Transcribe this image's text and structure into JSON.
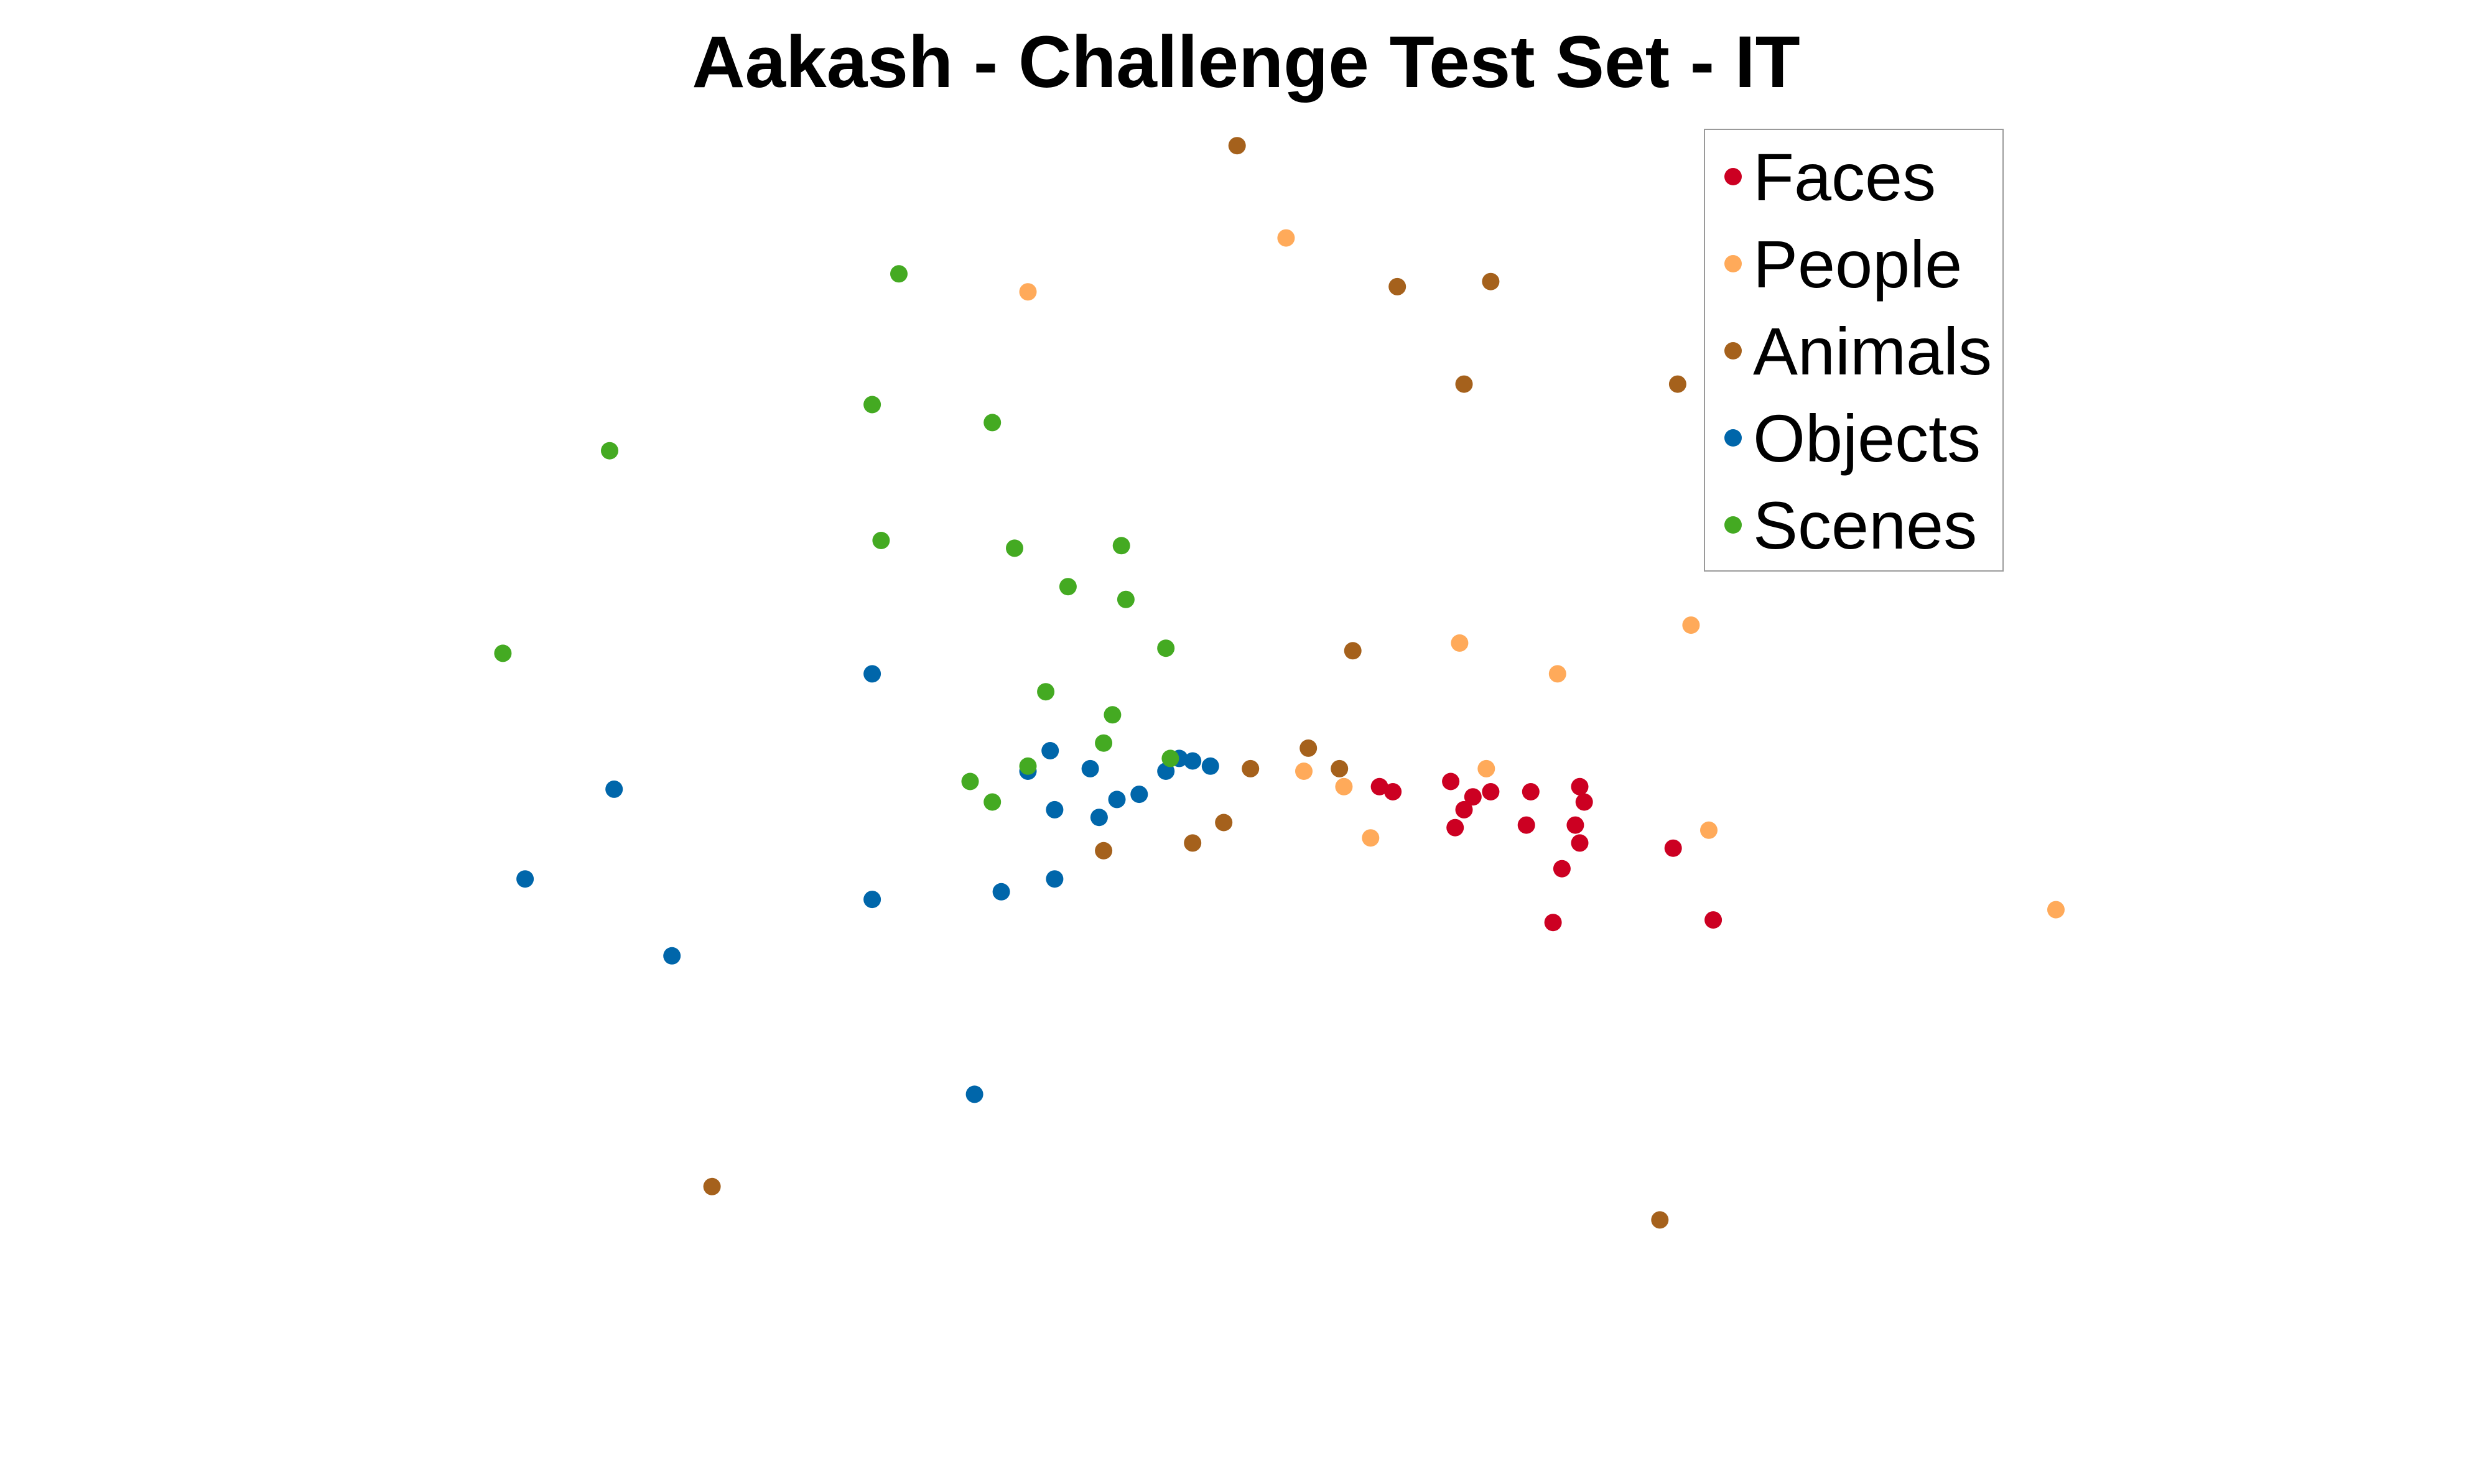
{
  "chart_data": {
    "type": "scatter",
    "title": "Aakash - Challenge Test Set - IT",
    "xlabel": "",
    "ylabel": "",
    "axes_visible": false,
    "grid": false,
    "xlim": [
      -14,
      14
    ],
    "ylim": [
      -14,
      13
    ],
    "legend": {
      "placement": "top-right",
      "box": true
    },
    "series": [
      {
        "name": "Faces",
        "color": "#cc0022",
        "points": [
          [
            1.5,
            -0.4
          ],
          [
            1.65,
            -0.5
          ],
          [
            2.3,
            -0.3
          ],
          [
            2.55,
            -0.6
          ],
          [
            2.75,
            -0.5
          ],
          [
            2.45,
            -0.85
          ],
          [
            2.35,
            -1.2
          ],
          [
            3.2,
            -0.5
          ],
          [
            3.15,
            -1.15
          ],
          [
            3.75,
            -0.4
          ],
          [
            3.8,
            -0.7
          ],
          [
            3.7,
            -1.15
          ],
          [
            3.75,
            -1.5
          ],
          [
            3.55,
            -2.0
          ],
          [
            3.45,
            -3.05
          ],
          [
            4.8,
            -1.6
          ],
          [
            5.25,
            -3.0
          ]
        ]
      },
      {
        "name": "People",
        "color": "#ffaa5a",
        "points": [
          [
            -2.45,
            9.25
          ],
          [
            0.45,
            10.3
          ],
          [
            2.4,
            2.4
          ],
          [
            3.5,
            1.8
          ],
          [
            5.0,
            2.75
          ],
          [
            2.7,
            -0.05
          ],
          [
            0.65,
            -0.1
          ],
          [
            1.1,
            -0.4
          ],
          [
            1.4,
            -1.4
          ],
          [
            5.2,
            -1.25
          ],
          [
            9.1,
            -2.8
          ]
        ]
      },
      {
        "name": "Animals",
        "color": "#a5611c",
        "points": [
          [
            -0.1,
            12.1
          ],
          [
            1.7,
            9.35
          ],
          [
            2.75,
            9.45
          ],
          [
            2.45,
            7.45
          ],
          [
            4.85,
            7.45
          ],
          [
            1.2,
            2.25
          ],
          [
            0.7,
            0.35
          ],
          [
            1.05,
            -0.05
          ],
          [
            0.05,
            -0.05
          ],
          [
            -0.25,
            -1.1
          ],
          [
            -0.6,
            -1.5
          ],
          [
            -1.6,
            -1.65
          ],
          [
            -6.0,
            -8.2
          ],
          [
            4.65,
            -8.85
          ]
        ]
      },
      {
        "name": "Objects",
        "color": "#0066aa",
        "points": [
          [
            -4.2,
            1.8
          ],
          [
            -7.1,
            -0.45
          ],
          [
            -8.1,
            -2.2
          ],
          [
            -6.45,
            -3.7
          ],
          [
            -4.2,
            -2.6
          ],
          [
            -2.75,
            -2.45
          ],
          [
            -2.15,
            -2.2
          ],
          [
            -3.05,
            -6.4
          ],
          [
            -2.45,
            -0.1
          ],
          [
            -2.2,
            0.3
          ],
          [
            -1.75,
            -0.05
          ],
          [
            -1.45,
            -0.65
          ],
          [
            -1.2,
            -0.55
          ],
          [
            -0.9,
            -0.1
          ],
          [
            -0.75,
            0.15
          ],
          [
            -0.6,
            0.1
          ],
          [
            -0.4,
            0.0
          ],
          [
            -2.15,
            -0.85
          ],
          [
            -1.65,
            -1.0
          ]
        ]
      },
      {
        "name": "Scenes",
        "color": "#44aa22",
        "points": [
          [
            -3.9,
            9.6
          ],
          [
            -4.2,
            7.05
          ],
          [
            -2.85,
            6.7
          ],
          [
            -7.15,
            6.15
          ],
          [
            -4.1,
            4.4
          ],
          [
            -2.6,
            4.25
          ],
          [
            -1.4,
            4.3
          ],
          [
            -2.0,
            3.5
          ],
          [
            -1.35,
            3.25
          ],
          [
            -8.35,
            2.2
          ],
          [
            -0.9,
            2.3
          ],
          [
            -2.25,
            1.45
          ],
          [
            -1.5,
            1.0
          ],
          [
            -1.6,
            0.45
          ],
          [
            -0.85,
            0.15
          ],
          [
            -3.1,
            -0.3
          ],
          [
            -2.85,
            -0.7
          ],
          [
            -2.45,
            0.0
          ]
        ]
      }
    ]
  }
}
